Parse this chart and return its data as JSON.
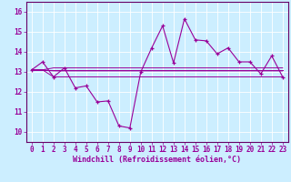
{
  "title": "",
  "xlabel": "Windchill (Refroidissement éolien,°C)",
  "bg_color": "#cceeff",
  "grid_color": "#ffffff",
  "line_color": "#990099",
  "spine_color": "#660066",
  "xlim": [
    -0.5,
    23.5
  ],
  "ylim": [
    9.5,
    16.5
  ],
  "yticks": [
    10,
    11,
    12,
    13,
    14,
    15,
    16
  ],
  "xticks": [
    0,
    1,
    2,
    3,
    4,
    5,
    6,
    7,
    8,
    9,
    10,
    11,
    12,
    13,
    14,
    15,
    16,
    17,
    18,
    19,
    20,
    21,
    22,
    23
  ],
  "main_line": [
    13.1,
    13.5,
    12.75,
    13.2,
    12.2,
    12.3,
    11.5,
    11.55,
    10.3,
    10.2,
    13.0,
    14.2,
    15.3,
    13.45,
    15.65,
    14.6,
    14.55,
    13.9,
    14.2,
    13.5,
    13.5,
    12.9,
    13.8,
    12.75
  ],
  "flat_lines": [
    [
      13.1,
      13.1,
      12.75,
      12.75,
      12.75,
      12.75,
      12.75,
      12.75,
      12.75,
      12.75,
      12.75,
      12.75,
      12.75,
      12.75,
      12.75,
      12.75,
      12.75,
      12.75,
      12.75,
      12.75,
      12.75,
      12.75,
      12.75,
      12.75
    ],
    [
      13.1,
      13.1,
      13.05,
      13.05,
      13.05,
      13.05,
      13.05,
      13.05,
      13.05,
      13.05,
      13.05,
      13.05,
      13.05,
      13.05,
      13.05,
      13.05,
      13.05,
      13.05,
      13.05,
      13.05,
      13.05,
      13.05,
      13.05,
      13.05
    ],
    [
      13.1,
      13.1,
      13.1,
      13.1,
      13.1,
      13.1,
      13.1,
      13.1,
      13.1,
      13.1,
      13.1,
      13.1,
      13.1,
      13.1,
      13.1,
      13.1,
      13.1,
      13.1,
      13.1,
      13.1,
      13.1,
      13.1,
      13.1,
      13.1
    ],
    [
      13.1,
      13.1,
      13.2,
      13.2,
      13.2,
      13.2,
      13.2,
      13.2,
      13.2,
      13.2,
      13.2,
      13.2,
      13.2,
      13.2,
      13.2,
      13.2,
      13.2,
      13.2,
      13.2,
      13.2,
      13.2,
      13.2,
      13.2,
      13.2
    ]
  ],
  "xlabel_fontsize": 6,
  "ylabel_fontsize": 6,
  "tick_fontsize": 5.5
}
